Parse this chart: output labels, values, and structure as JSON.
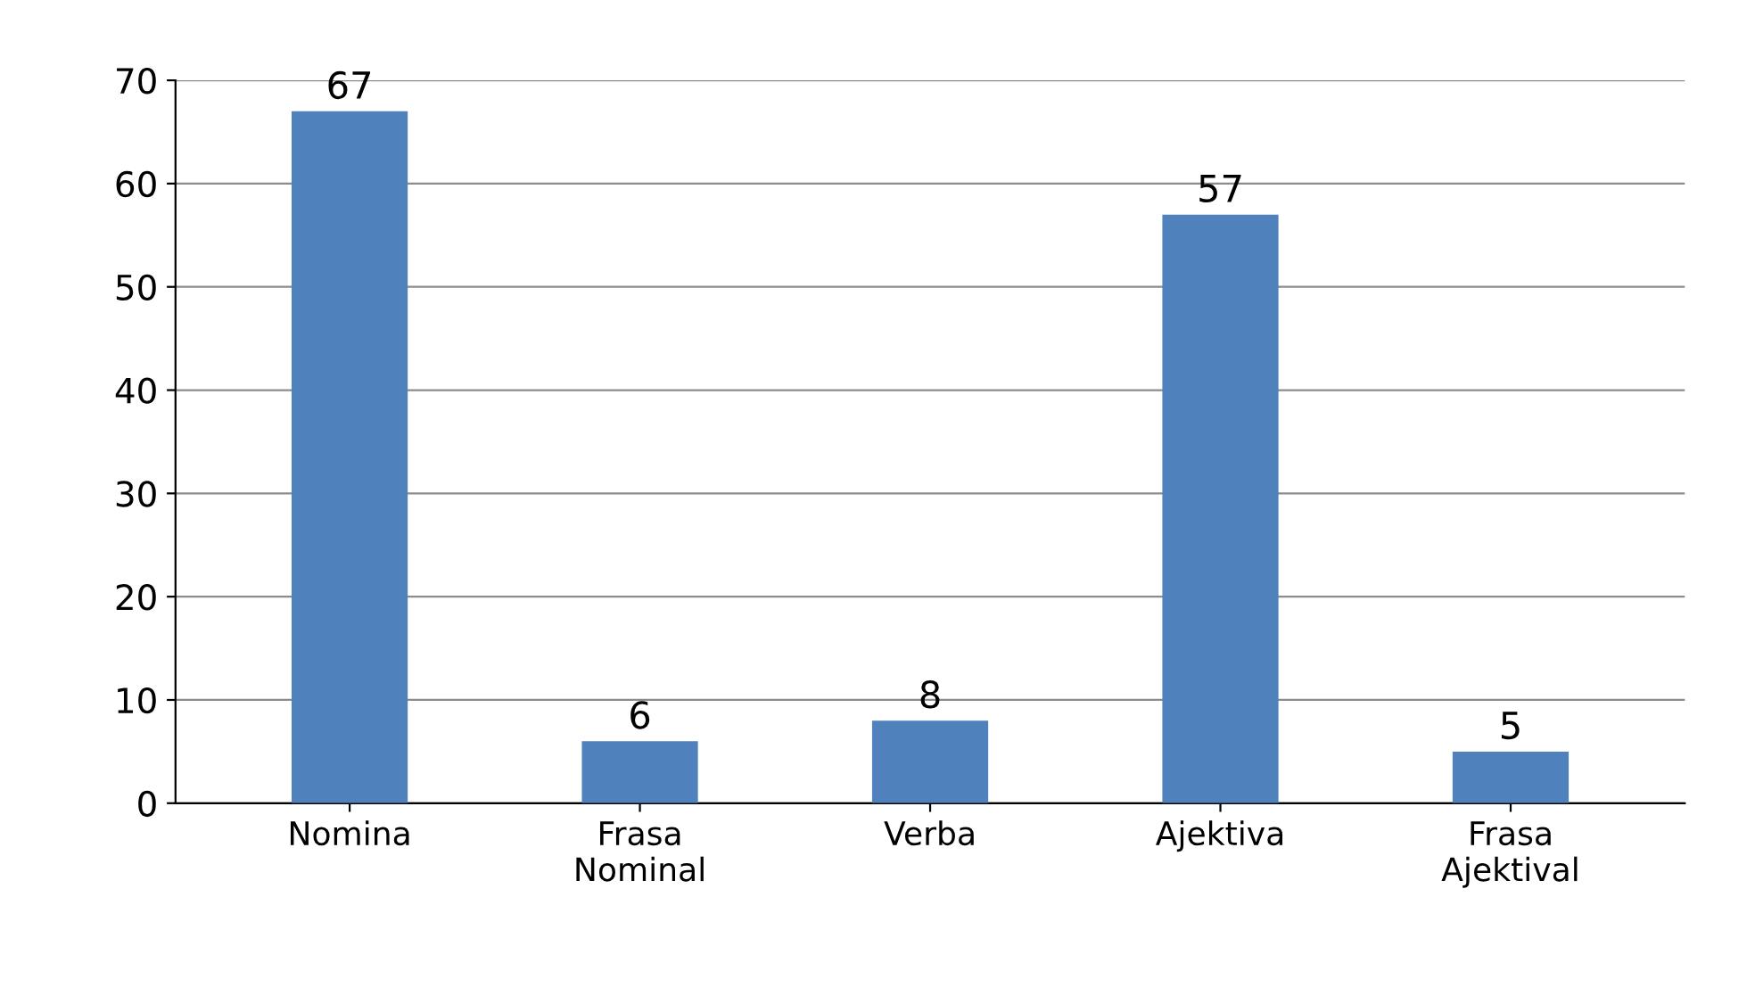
{
  "chart_data": {
    "type": "bar",
    "categories": [
      "Nomina",
      "Frasa\nNominal",
      "Verba",
      "Ajektiva",
      "Frasa\nAjektival"
    ],
    "values": [
      67,
      6,
      8,
      57,
      5
    ],
    "color": "#4f81bd",
    "ylim": [
      0,
      70
    ],
    "yticks": [
      0,
      10,
      20,
      30,
      40,
      50,
      60,
      70
    ],
    "grid": "y",
    "data_labels": true
  }
}
